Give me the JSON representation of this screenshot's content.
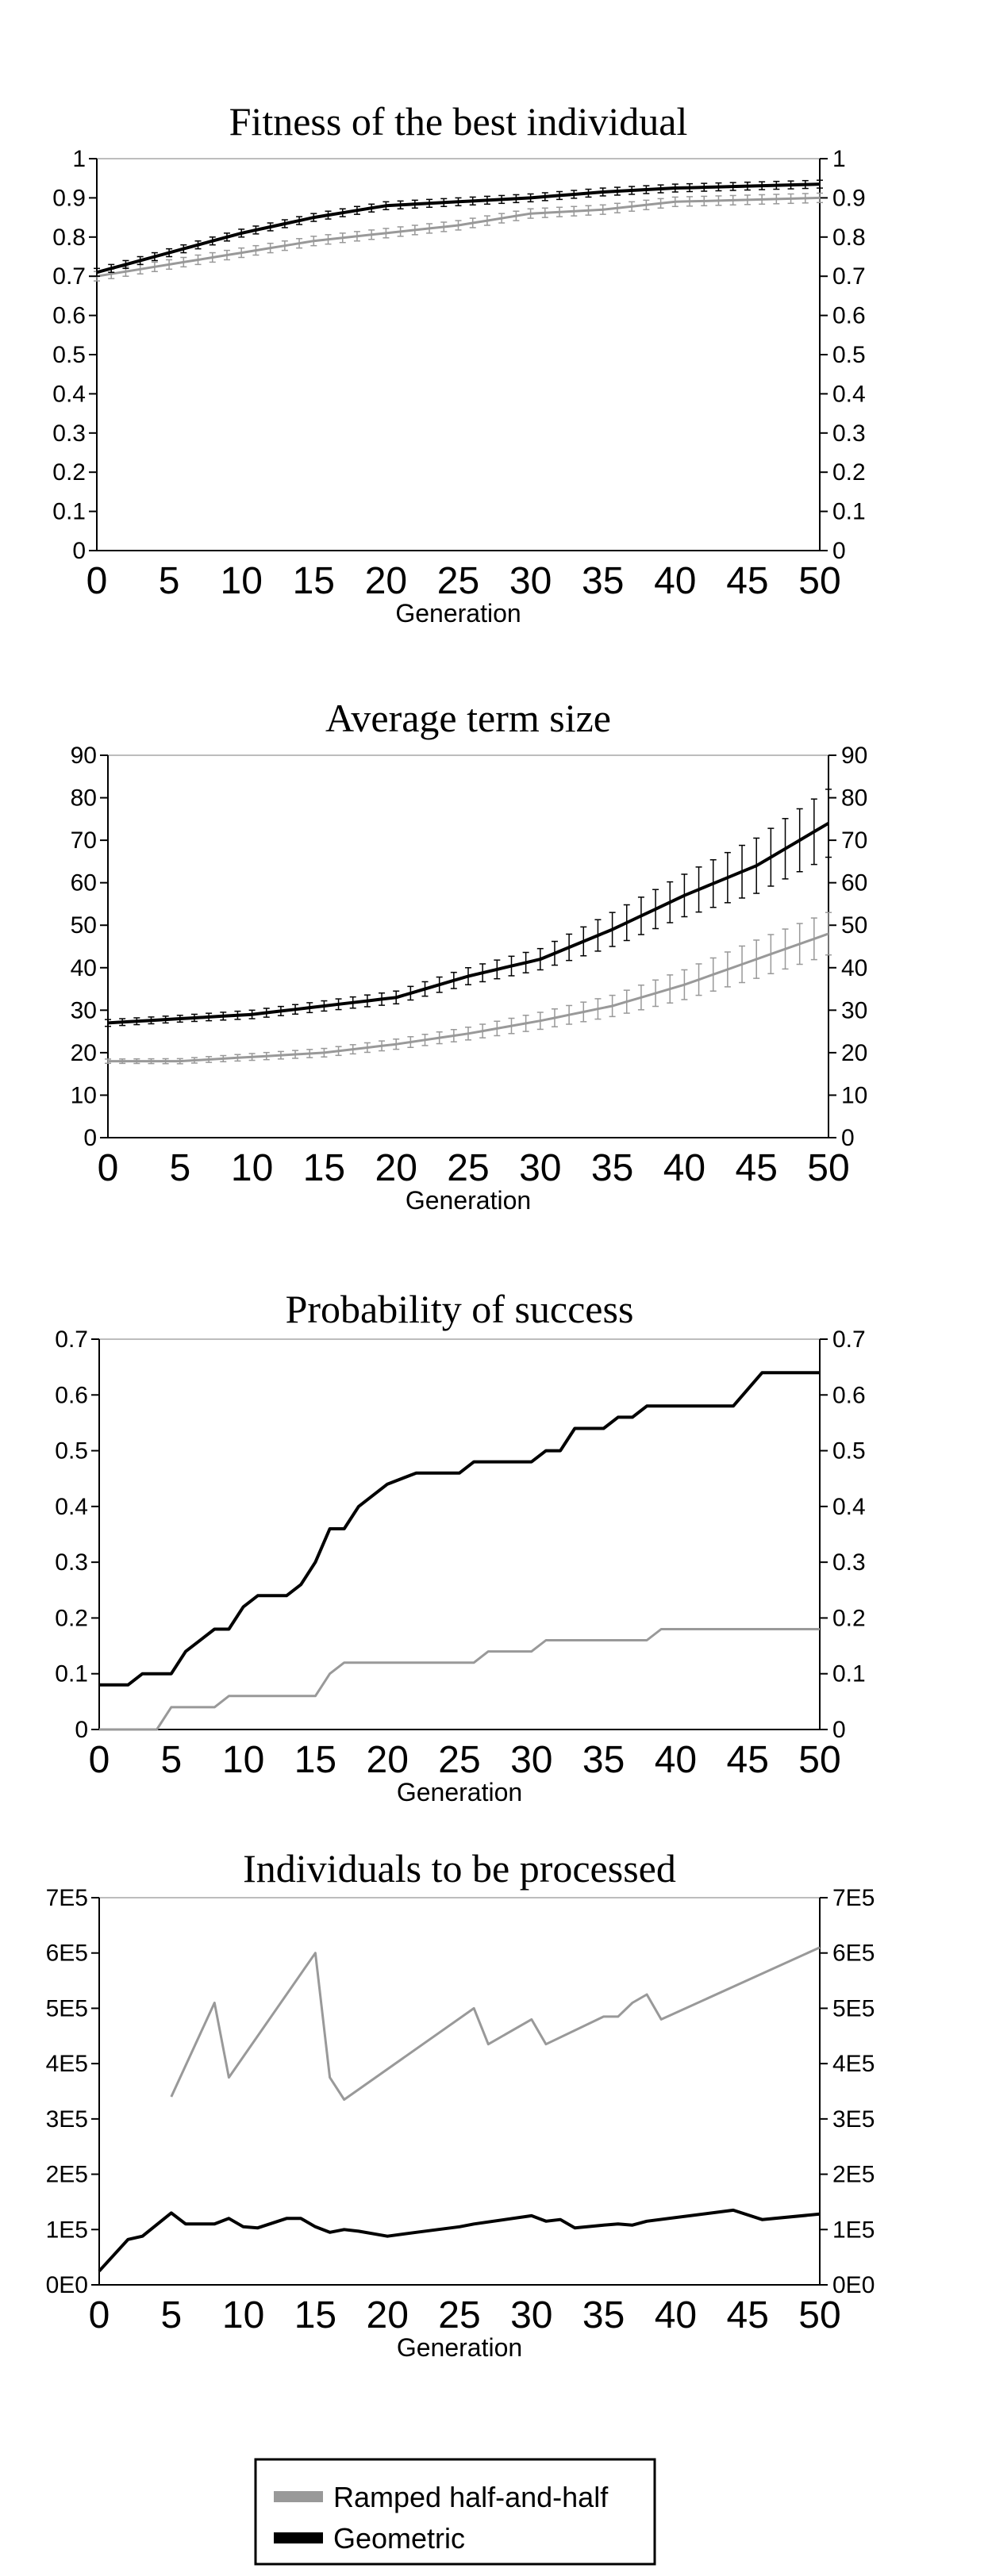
{
  "chart_data": [
    {
      "type": "line",
      "title": "Fitness of the best individual",
      "xlabel": "Generation",
      "ylabel": "",
      "xlim": [
        0,
        50
      ],
      "ylim": [
        0,
        1
      ],
      "x_ticks": [
        "0",
        "5",
        "10",
        "15",
        "20",
        "25",
        "30",
        "35",
        "40",
        "45",
        "50"
      ],
      "y_ticks": [
        "0",
        "0.1",
        "0.2",
        "0.3",
        "0.4",
        "0.5",
        "0.6",
        "0.7",
        "0.8",
        "0.9",
        "1"
      ],
      "error_bars": true,
      "series": [
        {
          "name": "Ramped half-and-half",
          "color": "#999999",
          "x": [
            0,
            5,
            10,
            15,
            20,
            25,
            30,
            35,
            40,
            45,
            50
          ],
          "values": [
            0.7,
            0.73,
            0.76,
            0.79,
            0.81,
            0.83,
            0.86,
            0.87,
            0.89,
            0.895,
            0.9
          ],
          "errors": [
            0.012,
            0.012,
            0.012,
            0.012,
            0.012,
            0.012,
            0.012,
            0.012,
            0.012,
            0.012,
            0.012
          ]
        },
        {
          "name": "Geometric",
          "color": "#000000",
          "x": [
            0,
            5,
            10,
            15,
            20,
            25,
            30,
            35,
            40,
            45,
            50
          ],
          "values": [
            0.71,
            0.76,
            0.81,
            0.85,
            0.88,
            0.89,
            0.9,
            0.915,
            0.925,
            0.93,
            0.935
          ],
          "errors": [
            0.01,
            0.01,
            0.01,
            0.01,
            0.01,
            0.01,
            0.01,
            0.01,
            0.01,
            0.01,
            0.01
          ]
        }
      ]
    },
    {
      "type": "line",
      "title": "Average term size",
      "xlabel": "Generation",
      "ylabel": "",
      "xlim": [
        0,
        50
      ],
      "ylim": [
        0,
        90
      ],
      "x_ticks": [
        "0",
        "5",
        "10",
        "15",
        "20",
        "25",
        "30",
        "35",
        "40",
        "45",
        "50"
      ],
      "y_ticks": [
        "0",
        "10",
        "20",
        "30",
        "40",
        "50",
        "60",
        "70",
        "80",
        "90"
      ],
      "error_bars": true,
      "series": [
        {
          "name": "Ramped half-and-half",
          "color": "#999999",
          "x": [
            0,
            5,
            10,
            15,
            20,
            25,
            30,
            35,
            40,
            45,
            50
          ],
          "values": [
            18,
            18,
            19,
            20,
            22,
            24.5,
            27.5,
            31,
            36,
            42,
            48
          ],
          "errors": [
            0.5,
            0.6,
            0.8,
            1,
            1.2,
            1.5,
            2,
            2.5,
            3.5,
            4.5,
            5
          ]
        },
        {
          "name": "Geometric",
          "color": "#000000",
          "x": [
            0,
            5,
            10,
            15,
            20,
            25,
            30,
            35,
            40,
            45,
            50
          ],
          "values": [
            27,
            28,
            29,
            31,
            33,
            38,
            42,
            49,
            57,
            64,
            74
          ],
          "errors": [
            0.8,
            0.8,
            1,
            1.2,
            1.5,
            2,
            2.5,
            4,
            5,
            6.5,
            8
          ]
        }
      ]
    },
    {
      "type": "line",
      "title": "Probability of success",
      "xlabel": "Generation",
      "ylabel": "",
      "xlim": [
        0,
        50
      ],
      "ylim": [
        0,
        0.7
      ],
      "x_ticks": [
        "0",
        "5",
        "10",
        "15",
        "20",
        "25",
        "30",
        "35",
        "40",
        "45",
        "50"
      ],
      "y_ticks": [
        "0",
        "0.1",
        "0.2",
        "0.3",
        "0.4",
        "0.5",
        "0.6",
        "0.7"
      ],
      "error_bars": false,
      "series": [
        {
          "name": "Ramped half-and-half",
          "color": "#999999",
          "x": [
            0,
            4,
            5,
            8,
            9,
            15,
            16,
            17,
            26,
            27,
            30,
            31,
            38,
            39,
            50
          ],
          "values": [
            0,
            0,
            0.04,
            0.04,
            0.06,
            0.06,
            0.1,
            0.12,
            0.12,
            0.14,
            0.14,
            0.16,
            0.16,
            0.18,
            0.18
          ]
        },
        {
          "name": "Geometric",
          "color": "#000000",
          "x": [
            0,
            2,
            3,
            5,
            6,
            8,
            9,
            10,
            11,
            13,
            14,
            15,
            16,
            17,
            18,
            20,
            22,
            25,
            26,
            30,
            31,
            32,
            33,
            35,
            36,
            37,
            38,
            40,
            41,
            44,
            46,
            50
          ],
          "values": [
            0.08,
            0.08,
            0.1,
            0.1,
            0.14,
            0.18,
            0.18,
            0.22,
            0.24,
            0.24,
            0.26,
            0.3,
            0.36,
            0.36,
            0.4,
            0.44,
            0.46,
            0.46,
            0.48,
            0.48,
            0.5,
            0.5,
            0.54,
            0.54,
            0.56,
            0.56,
            0.58,
            0.58,
            0.58,
            0.58,
            0.64,
            0.64
          ]
        }
      ]
    },
    {
      "type": "line",
      "title": "Individuals to be processed",
      "xlabel": "Generation",
      "ylabel": "",
      "xlim": [
        0,
        50
      ],
      "ylim": [
        0,
        700000
      ],
      "x_ticks": [
        "0",
        "5",
        "10",
        "15",
        "20",
        "25",
        "30",
        "35",
        "40",
        "45",
        "50"
      ],
      "y_ticks": [
        "0E0",
        "1E5",
        "2E5",
        "3E5",
        "4E5",
        "5E5",
        "6E5",
        "7E5"
      ],
      "error_bars": false,
      "series": [
        {
          "name": "Ramped half-and-half",
          "color": "#999999",
          "x": [
            5,
            8,
            9,
            15,
            16,
            17,
            26,
            27,
            30,
            31,
            35,
            36,
            37,
            38,
            39,
            50
          ],
          "values": [
            340000,
            510000,
            375000,
            600000,
            375000,
            335000,
            500000,
            435000,
            480000,
            435000,
            485000,
            485000,
            510000,
            525000,
            480000,
            610000
          ]
        },
        {
          "name": "Geometric",
          "color": "#000000",
          "x": [
            0,
            2,
            3,
            5,
            6,
            8,
            9,
            10,
            11,
            13,
            14,
            15,
            16,
            17,
            18,
            20,
            22,
            25,
            26,
            30,
            31,
            32,
            33,
            35,
            36,
            37,
            38,
            44,
            46,
            50
          ],
          "values": [
            25000,
            82000,
            88000,
            130000,
            110000,
            110000,
            120000,
            105000,
            103000,
            120000,
            120000,
            105000,
            95000,
            100000,
            97000,
            88000,
            95000,
            105000,
            110000,
            125000,
            115000,
            118000,
            103000,
            108000,
            110000,
            108000,
            115000,
            135000,
            118000,
            128000
          ]
        }
      ]
    }
  ],
  "legend": {
    "placement": "bottom-center",
    "items": [
      {
        "label": "Ramped half-and-half",
        "color": "#999999"
      },
      {
        "label": "Geometric",
        "color": "#000000"
      }
    ]
  }
}
